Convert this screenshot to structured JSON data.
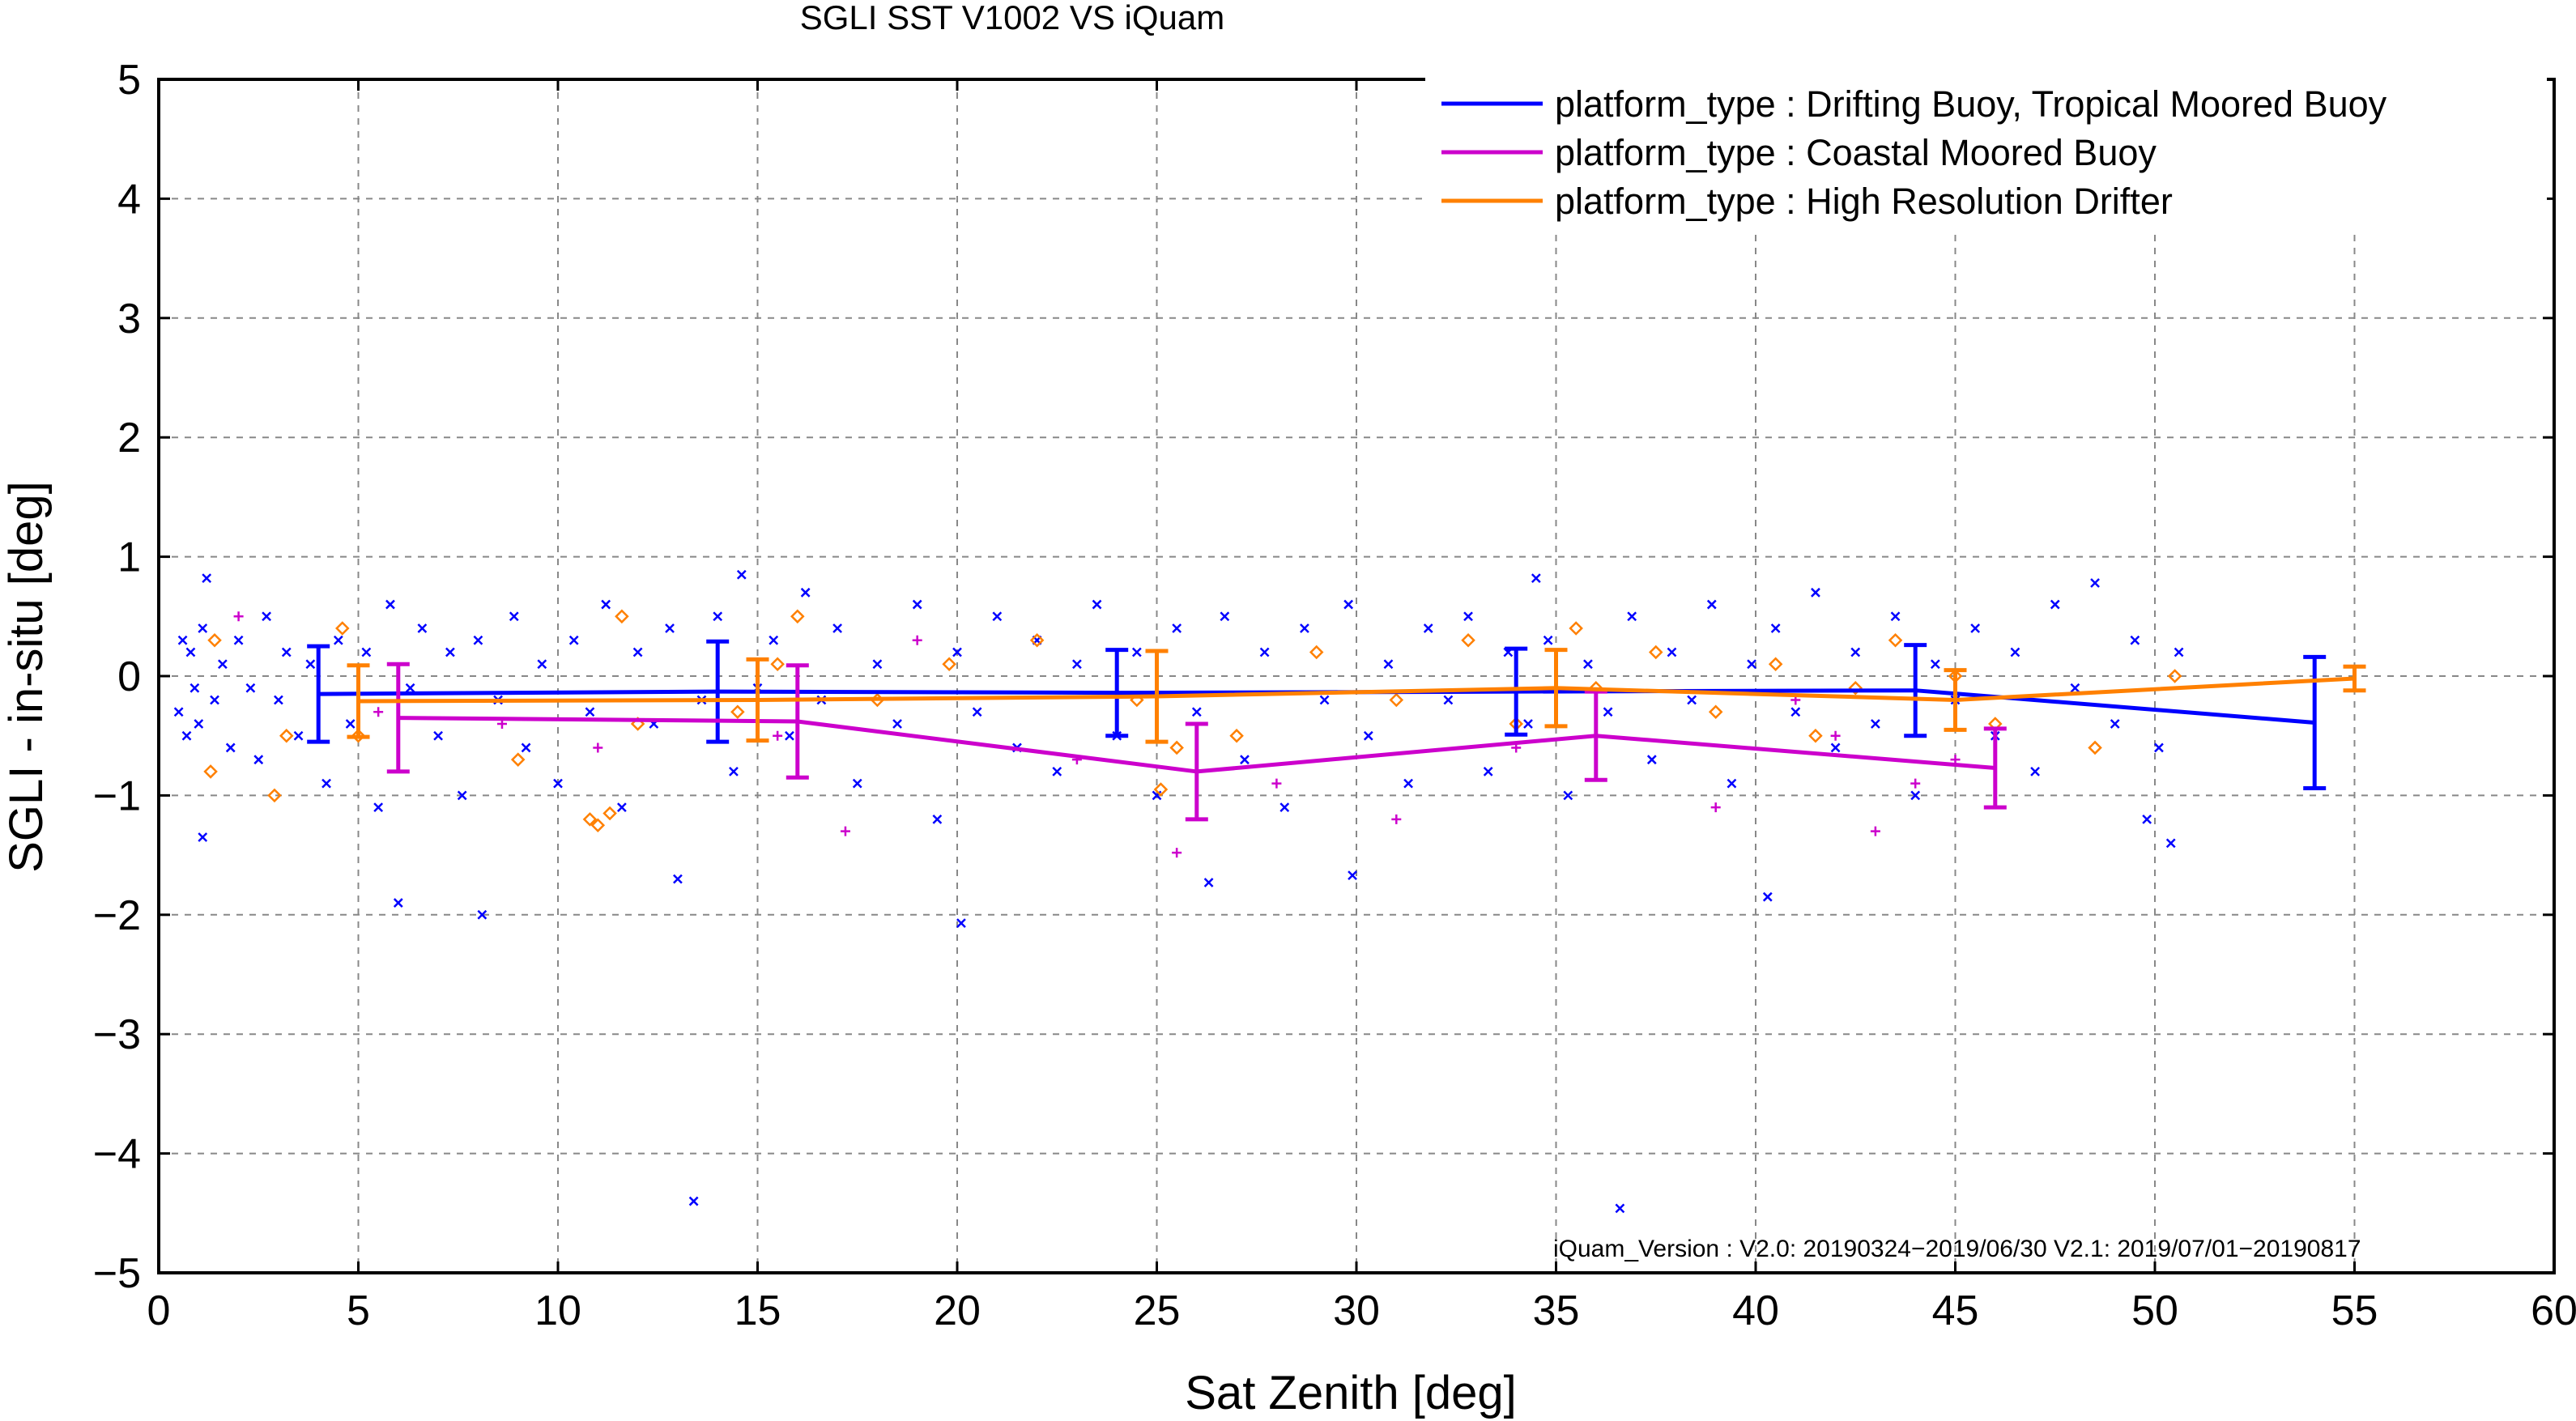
{
  "chart_data": {
    "type": "scatter",
    "title": "SGLI SST V1002 VS iQuam",
    "xlabel": "Sat Zenith [deg]",
    "ylabel": "SGLI - in-situ [deg]",
    "xlim": [
      0,
      60
    ],
    "ylim": [
      -5,
      5
    ],
    "x_ticks": [
      0,
      5,
      10,
      15,
      20,
      25,
      30,
      35,
      40,
      45,
      50,
      55,
      60
    ],
    "y_ticks": [
      -5,
      -4,
      -3,
      -2,
      -1,
      0,
      1,
      2,
      3,
      4,
      5
    ],
    "y_tick_labels": [
      "−5",
      "−4",
      "−3",
      "−2",
      "−1",
      "0",
      "1",
      "2",
      "3",
      "4",
      "5"
    ],
    "grid": true,
    "legend_position": "top-right",
    "annotation": "iQuam_Version :   V2.0: 20190324−2019/06/30 V2.1: 2019/07/01−20190817",
    "series": [
      {
        "name": "platform_type : Drifting Buoy, Tropical Moored Buoy",
        "color": "#0000ff",
        "marker": "x",
        "binned": [
          {
            "x": 4,
            "y": -0.15,
            "err": 0.4
          },
          {
            "x": 14,
            "y": -0.13,
            "err": 0.42
          },
          {
            "x": 24,
            "y": -0.14,
            "err": 0.36
          },
          {
            "x": 34,
            "y": -0.13,
            "err": 0.36
          },
          {
            "x": 44,
            "y": -0.12,
            "err": 0.38
          },
          {
            "x": 54,
            "y": -0.39,
            "err": 0.55
          }
        ],
        "scatter": [
          [
            0.5,
            -0.3
          ],
          [
            0.6,
            0.3
          ],
          [
            0.7,
            -0.5
          ],
          [
            0.8,
            0.2
          ],
          [
            0.9,
            -0.1
          ],
          [
            1.0,
            -0.4
          ],
          [
            1.1,
            0.4
          ],
          [
            1.2,
            0.82
          ],
          [
            1.1,
            -1.35
          ],
          [
            1.4,
            -0.2
          ],
          [
            1.6,
            0.1
          ],
          [
            1.8,
            -0.6
          ],
          [
            2.0,
            0.3
          ],
          [
            2.3,
            -0.1
          ],
          [
            2.5,
            -0.7
          ],
          [
            2.7,
            0.5
          ],
          [
            3.0,
            -0.2
          ],
          [
            3.2,
            0.2
          ],
          [
            3.5,
            -0.5
          ],
          [
            3.8,
            0.1
          ],
          [
            4.2,
            -0.9
          ],
          [
            4.5,
            0.3
          ],
          [
            4.8,
            -0.4
          ],
          [
            5.2,
            0.2
          ],
          [
            5.5,
            -1.1
          ],
          [
            5.8,
            0.6
          ],
          [
            6.0,
            -1.9
          ],
          [
            6.3,
            -0.1
          ],
          [
            6.6,
            0.4
          ],
          [
            7.0,
            -0.5
          ],
          [
            7.3,
            0.2
          ],
          [
            7.6,
            -1.0
          ],
          [
            8.0,
            0.3
          ],
          [
            8.1,
            -2.0
          ],
          [
            8.5,
            -0.2
          ],
          [
            8.9,
            0.5
          ],
          [
            9.2,
            -0.6
          ],
          [
            9.6,
            0.1
          ],
          [
            10.0,
            -0.9
          ],
          [
            10.4,
            0.3
          ],
          [
            10.8,
            -0.3
          ],
          [
            11.2,
            0.6
          ],
          [
            11.6,
            -1.1
          ],
          [
            12.0,
            0.2
          ],
          [
            12.4,
            -0.4
          ],
          [
            12.8,
            0.4
          ],
          [
            13.0,
            -1.7
          ],
          [
            13.4,
            -4.4
          ],
          [
            13.6,
            -0.2
          ],
          [
            14.0,
            0.5
          ],
          [
            14.4,
            -0.8
          ],
          [
            14.6,
            0.85
          ],
          [
            15.0,
            -0.1
          ],
          [
            15.4,
            0.3
          ],
          [
            15.8,
            -0.5
          ],
          [
            16.2,
            0.7
          ],
          [
            16.6,
            -0.2
          ],
          [
            17.0,
            0.4
          ],
          [
            17.5,
            -0.9
          ],
          [
            18.0,
            0.1
          ],
          [
            18.5,
            -0.4
          ],
          [
            19.0,
            0.6
          ],
          [
            19.5,
            -1.2
          ],
          [
            20.0,
            0.2
          ],
          [
            20.1,
            -2.07
          ],
          [
            20.5,
            -0.3
          ],
          [
            21.0,
            0.5
          ],
          [
            21.5,
            -0.6
          ],
          [
            22.0,
            0.3
          ],
          [
            22.5,
            -0.8
          ],
          [
            23.0,
            0.1
          ],
          [
            23.5,
            0.6
          ],
          [
            24.0,
            -0.5
          ],
          [
            24.5,
            0.2
          ],
          [
            25.0,
            -1.0
          ],
          [
            25.5,
            0.4
          ],
          [
            26.0,
            -0.3
          ],
          [
            26.3,
            -1.73
          ],
          [
            26.7,
            0.5
          ],
          [
            27.2,
            -0.7
          ],
          [
            27.7,
            0.2
          ],
          [
            28.2,
            -1.1
          ],
          [
            28.7,
            0.4
          ],
          [
            29.2,
            -0.2
          ],
          [
            29.8,
            0.6
          ],
          [
            29.9,
            -1.67
          ],
          [
            30.3,
            -0.5
          ],
          [
            30.8,
            0.1
          ],
          [
            31.3,
            -0.9
          ],
          [
            31.8,
            0.4
          ],
          [
            32.3,
            -0.2
          ],
          [
            32.8,
            0.5
          ],
          [
            33.3,
            -0.8
          ],
          [
            33.8,
            0.2
          ],
          [
            34.3,
            -0.4
          ],
          [
            34.5,
            0.82
          ],
          [
            34.8,
            0.3
          ],
          [
            35.3,
            -1.0
          ],
          [
            35.8,
            0.1
          ],
          [
            36.3,
            -0.3
          ],
          [
            36.6,
            -4.46
          ],
          [
            36.9,
            0.5
          ],
          [
            37.4,
            -0.7
          ],
          [
            37.9,
            0.2
          ],
          [
            38.4,
            -0.2
          ],
          [
            38.9,
            0.6
          ],
          [
            39.4,
            -0.9
          ],
          [
            39.9,
            0.1
          ],
          [
            40.3,
            -1.85
          ],
          [
            40.5,
            0.4
          ],
          [
            41.0,
            -0.3
          ],
          [
            41.5,
            0.7
          ],
          [
            42.0,
            -0.6
          ],
          [
            42.5,
            0.2
          ],
          [
            43.0,
            -0.4
          ],
          [
            43.5,
            0.5
          ],
          [
            44.0,
            -1.0
          ],
          [
            44.5,
            0.1
          ],
          [
            45.0,
            -0.2
          ],
          [
            45.5,
            0.4
          ],
          [
            46.0,
            -0.5
          ],
          [
            46.5,
            0.2
          ],
          [
            47.0,
            -0.8
          ],
          [
            47.5,
            0.6
          ],
          [
            48.0,
            -0.1
          ],
          [
            48.5,
            0.78
          ],
          [
            49.0,
            -0.4
          ],
          [
            49.5,
            0.3
          ],
          [
            49.8,
            -1.2
          ],
          [
            50.1,
            -0.6
          ],
          [
            50.4,
            -1.4
          ],
          [
            50.6,
            0.2
          ]
        ]
      },
      {
        "name": "platform_type : Coastal Moored Buoy",
        "color": "#cc00cc",
        "marker": "+",
        "binned": [
          {
            "x": 6,
            "y": -0.35,
            "err": 0.45
          },
          {
            "x": 16,
            "y": -0.38,
            "err": 0.47
          },
          {
            "x": 26,
            "y": -0.8,
            "err": 0.4
          },
          {
            "x": 36,
            "y": -0.5,
            "err": 0.37
          },
          {
            "x": 46,
            "y": -0.77,
            "err": 0.33
          }
        ],
        "scatter": [
          [
            2.0,
            0.5
          ],
          [
            5.5,
            -0.3
          ],
          [
            8.6,
            -0.4
          ],
          [
            11.0,
            -0.6
          ],
          [
            15.5,
            -0.5
          ],
          [
            17.2,
            -1.3
          ],
          [
            19.0,
            0.3
          ],
          [
            23.0,
            -0.7
          ],
          [
            25.5,
            -1.48
          ],
          [
            28.0,
            -0.9
          ],
          [
            31.0,
            -1.2
          ],
          [
            34.0,
            -0.6
          ],
          [
            39.0,
            -1.1
          ],
          [
            41.0,
            -0.2
          ],
          [
            42.0,
            -0.5
          ],
          [
            43.0,
            -1.3
          ],
          [
            44.0,
            -0.9
          ],
          [
            45.0,
            -0.7
          ]
        ]
      },
      {
        "name": "platform_type : High Resolution Drifter",
        "color": "#ff8000",
        "marker": "diamond",
        "binned": [
          {
            "x": 5,
            "y": -0.21,
            "err": 0.3
          },
          {
            "x": 15,
            "y": -0.2,
            "err": 0.34
          },
          {
            "x": 25,
            "y": -0.17,
            "err": 0.38
          },
          {
            "x": 35,
            "y": -0.1,
            "err": 0.32
          },
          {
            "x": 45,
            "y": -0.2,
            "err": 0.25
          },
          {
            "x": 55,
            "y": -0.02,
            "err": 0.1
          }
        ],
        "scatter": [
          [
            1.3,
            -0.8
          ],
          [
            1.4,
            0.3
          ],
          [
            2.9,
            -1.0
          ],
          [
            3.2,
            -0.5
          ],
          [
            4.6,
            0.4
          ],
          [
            5.0,
            -0.5
          ],
          [
            9.0,
            -0.7
          ],
          [
            10.8,
            -1.2
          ],
          [
            11.0,
            -1.25
          ],
          [
            11.3,
            -1.15
          ],
          [
            11.6,
            0.5
          ],
          [
            12.0,
            -0.4
          ],
          [
            14.5,
            -0.3
          ],
          [
            15.5,
            0.1
          ],
          [
            16.0,
            0.5
          ],
          [
            18.0,
            -0.2
          ],
          [
            19.8,
            0.1
          ],
          [
            22.0,
            0.3
          ],
          [
            24.5,
            -0.2
          ],
          [
            25.1,
            -0.95
          ],
          [
            25.5,
            -0.6
          ],
          [
            27.0,
            -0.5
          ],
          [
            29.0,
            0.2
          ],
          [
            31.0,
            -0.2
          ],
          [
            32.8,
            0.3
          ],
          [
            34.0,
            -0.4
          ],
          [
            35.5,
            0.4
          ],
          [
            36.0,
            -0.1
          ],
          [
            37.5,
            0.2
          ],
          [
            39.0,
            -0.3
          ],
          [
            40.5,
            0.1
          ],
          [
            41.5,
            -0.5
          ],
          [
            42.5,
            -0.1
          ],
          [
            43.5,
            0.3
          ],
          [
            45.0,
            0.0
          ],
          [
            46.0,
            -0.4
          ],
          [
            48.5,
            -0.6
          ],
          [
            50.5,
            0.0
          ]
        ]
      }
    ]
  }
}
